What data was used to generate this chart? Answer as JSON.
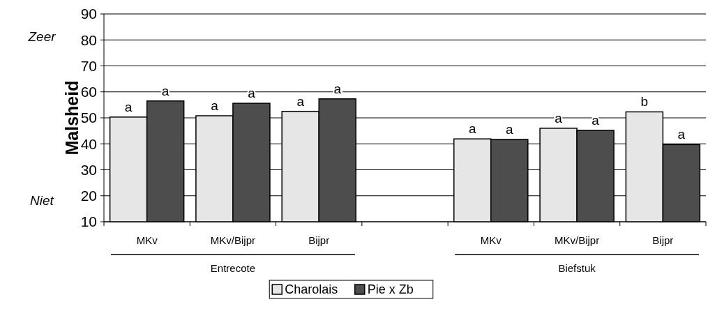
{
  "chart_data": {
    "type": "bar",
    "ylabel": "Malsheid",
    "categories": [
      "MKv",
      "MKv/Bijpr",
      "Bijpr",
      null,
      "MKv",
      "MKv/Bijpr",
      "Bijpr"
    ],
    "series": [
      {
        "name": "Charolais",
        "color": "#e6e6e6",
        "values": [
          50.3,
          50.8,
          52.5,
          null,
          41.9,
          46.0,
          52.3
        ],
        "value_labels": [
          "a",
          "a",
          "a",
          null,
          "a",
          "a",
          "b"
        ]
      },
      {
        "name": "Pie x Zb",
        "color": "#4d4d4d",
        "values": [
          56.5,
          55.6,
          57.3,
          null,
          41.7,
          45.2,
          39.7
        ],
        "value_labels": [
          "a",
          "a",
          "a",
          null,
          "a",
          "a",
          "a"
        ]
      }
    ],
    "ylim": [
      10,
      90
    ],
    "yticks": [
      10,
      20,
      30,
      40,
      50,
      60,
      70,
      80,
      90
    ],
    "grid": "y",
    "legend": "bottom",
    "annotations": [
      "Entrecote",
      "Biefstuk",
      "Zeer",
      "Niet"
    ]
  }
}
